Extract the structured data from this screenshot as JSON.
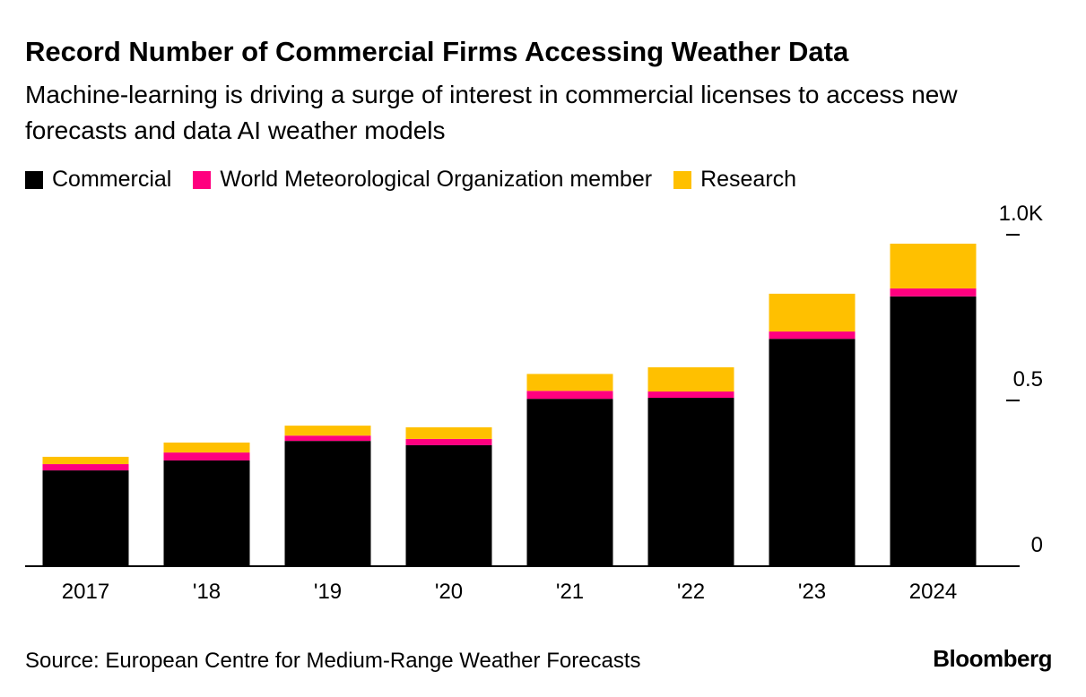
{
  "chart_data": {
    "type": "stacked-bar",
    "title": "Record Number of Commercial Firms Accessing Weather Data",
    "subtitle": "Machine-learning is driving a surge of interest in commercial licenses to access new forecasts and data AI weather models",
    "categories": [
      "2017",
      "'18",
      "'19",
      "'20",
      "'21",
      "'22",
      "'23",
      "2024"
    ],
    "series": [
      {
        "name": "Commercial",
        "color": "#000000",
        "values": [
          289,
          319,
          378,
          365,
          505,
          508,
          686,
          814
        ]
      },
      {
        "name": "World Meteorological Organization member",
        "color": "#ff007f",
        "values": [
          19,
          24,
          16,
          19,
          24,
          19,
          22,
          24
        ]
      },
      {
        "name": "Research",
        "color": "#ffc000",
        "values": [
          22,
          30,
          30,
          35,
          51,
          73,
          114,
          135
        ]
      }
    ],
    "ylim": [
      0,
      1000
    ],
    "yticks": [
      0,
      {
        "value": 500,
        "label": "0.5"
      },
      {
        "value": 1000,
        "label": "1.0K"
      }
    ],
    "source": "Source: European Centre for Medium-Range Weather Forecasts",
    "credit": "Bloomberg"
  }
}
